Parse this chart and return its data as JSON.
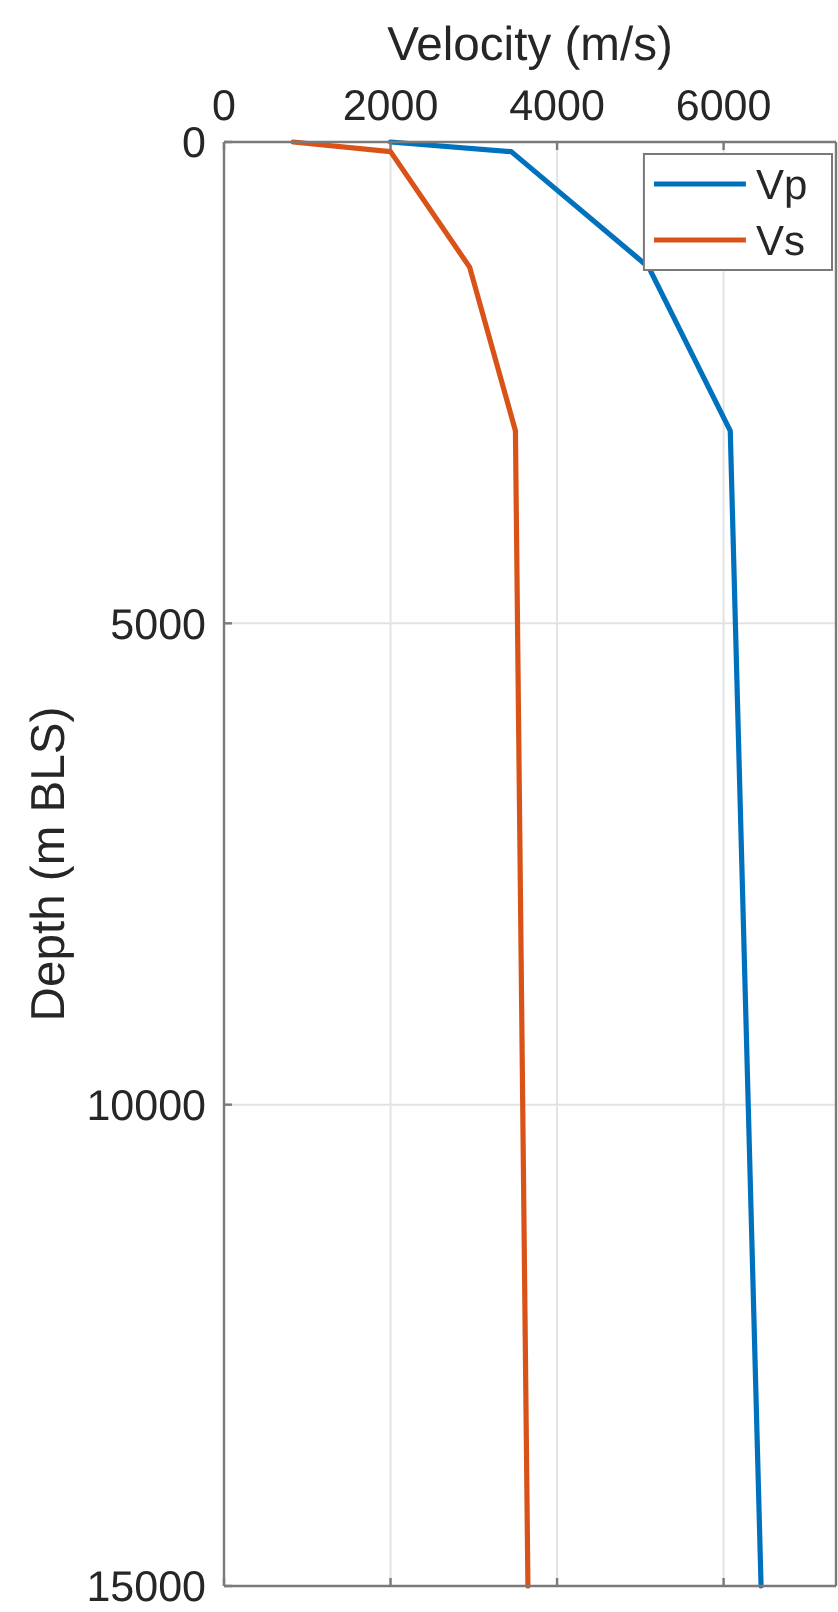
{
  "chart_data": {
    "type": "line",
    "xlabel": "Velocity (m/s)",
    "ylabel": "Depth (m BLS)",
    "xlim": [
      0,
      7350
    ],
    "xticks": [
      0,
      2000,
      4000,
      6000
    ],
    "ylim": [
      15000,
      0
    ],
    "yticks": [
      0,
      5000,
      10000,
      15000
    ],
    "grid": true,
    "legend": "top right",
    "series": [
      {
        "name": "Vp",
        "color": "#0072bd",
        "x": [
          2000,
          3450,
          5100,
          6080,
          6450
        ],
        "values": [
          0,
          100,
          1300,
          3000,
          15000
        ]
      },
      {
        "name": "Vs",
        "color": "#d95319",
        "x": [
          830,
          2000,
          2950,
          3500,
          3650
        ],
        "values": [
          0,
          100,
          1300,
          3000,
          15000
        ]
      }
    ]
  }
}
